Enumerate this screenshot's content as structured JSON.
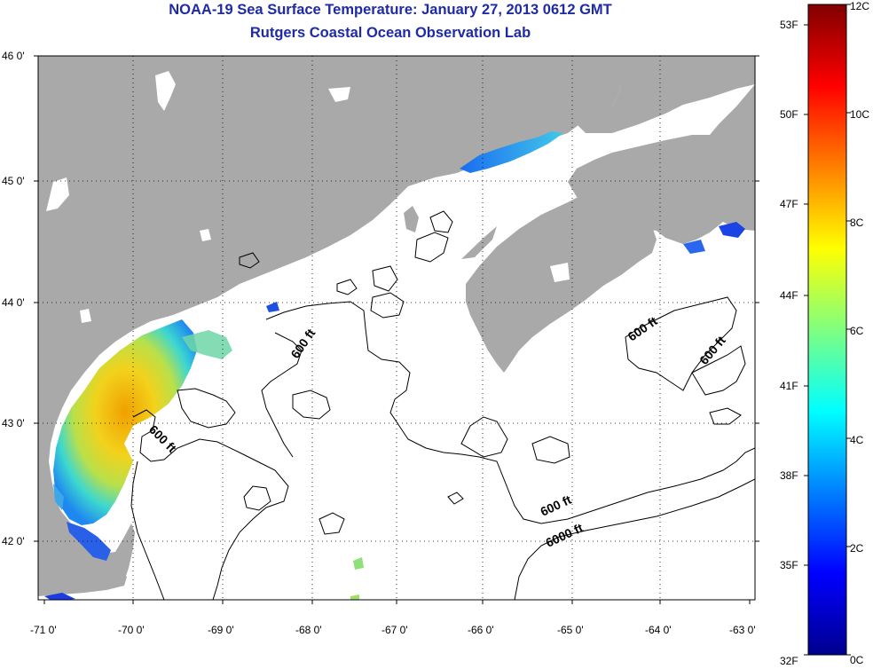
{
  "title": {
    "line1": "NOAA-19 Sea Surface Temperature:  January 27, 2013 0612 GMT",
    "line2": "Rutgers Coastal Ocean Observation Lab"
  },
  "map": {
    "lat_labels": [
      "46 0'",
      "45 0'",
      "44 0'",
      "43 0'",
      "42 0'"
    ],
    "lon_labels": [
      "-71 0'",
      "-70 0'",
      "-69 0'",
      "-68 0'",
      "-67 0'",
      "-66 0'",
      "-65 0'",
      "-64 0'",
      "-63 0'"
    ],
    "contour_labels": [
      {
        "text": "600 ft"
      },
      {
        "text": "600 ft"
      },
      {
        "text": "600 ft"
      },
      {
        "text": "600 ft"
      },
      {
        "text": "600 ft"
      },
      {
        "text": "6000 ft"
      }
    ],
    "colors": {
      "land": "#a9a9a9",
      "ocean_nodata": "#ffffff",
      "contour": "#000000",
      "grid": "#000000"
    }
  },
  "colorbar": {
    "fahrenheit_labels": [
      "53F",
      "50F",
      "47F",
      "44F",
      "41F",
      "38F",
      "35F",
      "32F"
    ],
    "celsius_labels": [
      "12C",
      "10C",
      "8C",
      "6C",
      "4C",
      "2C",
      "0C"
    ],
    "range_c": [
      0,
      12
    ],
    "range_f": [
      32,
      53
    ],
    "colormap": "jet"
  }
}
